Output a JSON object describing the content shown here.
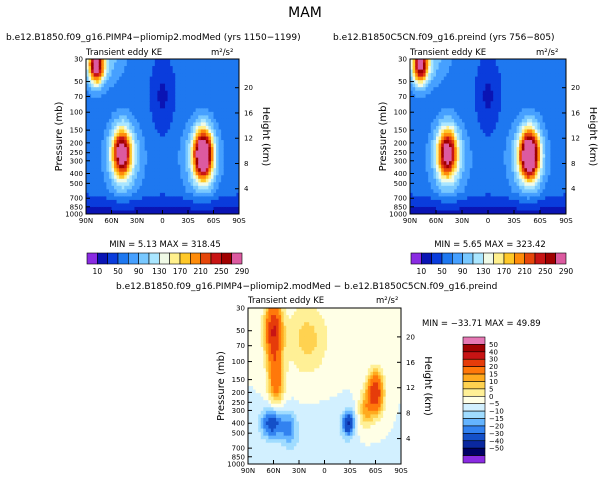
{
  "figure": {
    "title": "MAM"
  },
  "chart_data": [
    {
      "type": "heatmap",
      "title": "b.e12.B1850.f09_g16.PIMP4−pliomip2.modMed (yrs 1150−1199)",
      "subtitle": "Transient eddy KE",
      "units": "m²/s²",
      "xlabel": "",
      "ylabel": "Pressure (mb)",
      "ylabel_right": "Height (km)",
      "x_ticks": [
        "90N",
        "60N",
        "30N",
        "0",
        "30S",
        "60S",
        "90S"
      ],
      "y_ticks": [
        "30",
        "50",
        "70",
        "100",
        "150",
        "200",
        "250",
        "300",
        "400",
        "500",
        "700",
        "850",
        "1000"
      ],
      "height_ticks": [
        "20",
        "16",
        "12",
        "8",
        "4"
      ],
      "stats": "MIN =    5.13   MAX =  318.45",
      "colorbar_labels": [
        "10",
        "50",
        "90",
        "130",
        "170",
        "210",
        "250",
        "290"
      ],
      "scale": "sequential",
      "min": 5.13,
      "max": 318.45,
      "features": [
        {
          "lat": 78,
          "p": 35,
          "value": 250,
          "spread_lat": 9,
          "spread_logp": 0.18
        },
        {
          "lat": 48,
          "p": 250,
          "value": 240,
          "spread_lat": 11,
          "spread_logp": 0.24
        },
        {
          "lat": -48,
          "p": 260,
          "value": 300,
          "spread_lat": 11,
          "spread_logp": 0.24
        }
      ]
    },
    {
      "type": "heatmap",
      "title": "b.e12.B1850C5CN.f09_g16.preind (yrs 756−805)",
      "subtitle": "Transient eddy KE",
      "units": "m²/s²",
      "xlabel": "",
      "ylabel": "Pressure (mb)",
      "ylabel_right": "Height (km)",
      "x_ticks": [
        "90N",
        "60N",
        "30N",
        "0",
        "30S",
        "60S",
        "90S"
      ],
      "y_ticks": [
        "30",
        "50",
        "70",
        "100",
        "150",
        "200",
        "250",
        "300",
        "400",
        "500",
        "700",
        "850",
        "1000"
      ],
      "height_ticks": [
        "20",
        "16",
        "12",
        "8",
        "4"
      ],
      "stats": "MIN =    5.65   MAX =  323.42",
      "colorbar_labels": [
        "10",
        "50",
        "90",
        "130",
        "170",
        "210",
        "250",
        "290"
      ],
      "scale": "sequential",
      "min": 5.65,
      "max": 323.42,
      "features": [
        {
          "lat": 78,
          "p": 35,
          "value": 240,
          "spread_lat": 9,
          "spread_logp": 0.18
        },
        {
          "lat": 47,
          "p": 250,
          "value": 235,
          "spread_lat": 11,
          "spread_logp": 0.24
        },
        {
          "lat": -48,
          "p": 260,
          "value": 305,
          "spread_lat": 11,
          "spread_logp": 0.24
        }
      ]
    },
    {
      "type": "heatmap",
      "title": "b.e12.B1850.f09_g16.PIMP4−pliomip2.modMed − b.e12.B1850C5CN.f09_g16.preind",
      "subtitle": "Transient eddy KE",
      "units": "m²/s²",
      "xlabel": "",
      "ylabel": "Pressure (mb)",
      "ylabel_right": "Height (km)",
      "x_ticks": [
        "90N",
        "60N",
        "30N",
        "0",
        "30S",
        "60S",
        "90S"
      ],
      "y_ticks": [
        "30",
        "50",
        "70",
        "100",
        "150",
        "200",
        "250",
        "300",
        "400",
        "500",
        "700",
        "850",
        "1000"
      ],
      "height_ticks": [
        "20",
        "16",
        "12",
        "8",
        "4"
      ],
      "stats": "MIN =  −33.71   MAX =   49.89",
      "colorbar_labels": [
        "50",
        "40",
        "30",
        "20",
        "15",
        "10",
        "5",
        "0",
        "−5",
        "−10",
        "−15",
        "−20",
        "−30",
        "−40",
        "−50"
      ],
      "scale": "diverging",
      "min": -33.71,
      "max": 49.89,
      "features": [
        {
          "lat": 60,
          "p": 50,
          "value": 40,
          "spread_lat": 10,
          "spread_logp": 0.3
        },
        {
          "lat": 57,
          "p": 150,
          "value": 25,
          "spread_lat": 9,
          "spread_logp": 0.25
        },
        {
          "lat": -60,
          "p": 200,
          "value": 40,
          "spread_lat": 9,
          "spread_logp": 0.2
        },
        {
          "lat": -28,
          "p": 400,
          "value": -30,
          "spread_lat": 7,
          "spread_logp": 0.12
        },
        {
          "lat": 62,
          "p": 400,
          "value": -25,
          "spread_lat": 13,
          "spread_logp": 0.15
        },
        {
          "lat": 42,
          "p": 450,
          "value": -15,
          "spread_lat": 9,
          "spread_logp": 0.16
        },
        {
          "lat": -48,
          "p": 300,
          "value": 15,
          "spread_lat": 8,
          "spread_logp": 0.18
        },
        {
          "lat": 20,
          "p": 60,
          "value": 12,
          "spread_lat": 25,
          "spread_logp": 0.35
        },
        {
          "lat": 10,
          "p": 700,
          "value": -4,
          "spread_lat": 40,
          "spread_logp": 0.3
        }
      ]
    }
  ],
  "colors": {
    "sequential": [
      "#8a2be2",
      "#0a14b4",
      "#0a3cdc",
      "#1e78f0",
      "#46a0ff",
      "#78c8ff",
      "#aae6ff",
      "#f0fae6",
      "#fff08c",
      "#ffc828",
      "#ff8c0a",
      "#e6460a",
      "#c81414",
      "#a00000",
      "#dc5aa0"
    ],
    "diverging_pos": [
      "#ffffe6",
      "#fff096",
      "#ffd250",
      "#ffaa1e",
      "#ff780a",
      "#e63c0a",
      "#c81414",
      "#a00000",
      "#e678b4"
    ],
    "diverging_neg": [
      "#d2f0ff",
      "#a0dcff",
      "#64b4ff",
      "#3282f0",
      "#1450c8",
      "#0a28a0",
      "#000064",
      "#8a2be2"
    ],
    "diverging_levels_pos": [
      0,
      5,
      10,
      15,
      20,
      30,
      40,
      50
    ],
    "diverging_levels_neg": [
      0,
      -5,
      -10,
      -15,
      -20,
      -30,
      -40,
      -50
    ]
  }
}
